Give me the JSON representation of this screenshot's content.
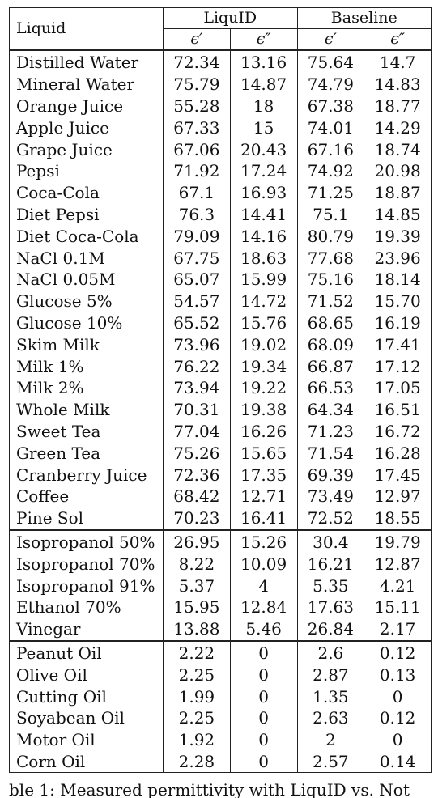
{
  "table": {
    "header": {
      "liquid": "Liquid",
      "group1": "LiquID",
      "group2": "Baseline",
      "eps_real": "ϵ′",
      "eps_imag": "ϵ″"
    },
    "sections": [
      {
        "rows": [
          {
            "name": "Distilled Water",
            "l1": "72.34",
            "l2": "13.16",
            "b1": "75.64",
            "b2": "14.7"
          },
          {
            "name": "Mineral Water",
            "l1": "75.79",
            "l2": "14.87",
            "b1": "74.79",
            "b2": "14.83"
          },
          {
            "name": "Orange Juice",
            "l1": "55.28",
            "l2": "18",
            "b1": "67.38",
            "b2": "18.77"
          },
          {
            "name": "Apple Juice",
            "l1": "67.33",
            "l2": "15",
            "b1": "74.01",
            "b2": "14.29"
          },
          {
            "name": "Grape Juice",
            "l1": "67.06",
            "l2": "20.43",
            "b1": "67.16",
            "b2": "18.74"
          },
          {
            "name": "Pepsi",
            "l1": "71.92",
            "l2": "17.24",
            "b1": "74.92",
            "b2": "20.98"
          },
          {
            "name": "Coca-Cola",
            "l1": "67.1",
            "l2": "16.93",
            "b1": "71.25",
            "b2": "18.87"
          },
          {
            "name": "Diet Pepsi",
            "l1": "76.3",
            "l2": "14.41",
            "b1": "75.1",
            "b2": "14.85"
          },
          {
            "name": "Diet Coca-Cola",
            "l1": "79.09",
            "l2": "14.16",
            "b1": "80.79",
            "b2": "19.39"
          },
          {
            "name": "NaCl 0.1M",
            "l1": "67.75",
            "l2": "18.63",
            "b1": "77.68",
            "b2": "23.96"
          },
          {
            "name": "NaCl 0.05M",
            "l1": "65.07",
            "l2": "15.99",
            "b1": "75.16",
            "b2": "18.14"
          },
          {
            "name": "Glucose 5%",
            "l1": "54.57",
            "l2": "14.72",
            "b1": "71.52",
            "b2": "15.70"
          },
          {
            "name": "Glucose 10%",
            "l1": "65.52",
            "l2": "15.76",
            "b1": "68.65",
            "b2": "16.19"
          },
          {
            "name": "Skim Milk",
            "l1": "73.96",
            "l2": "19.02",
            "b1": "68.09",
            "b2": "17.41"
          },
          {
            "name": "Milk 1%",
            "l1": "76.22",
            "l2": "19.34",
            "b1": "66.87",
            "b2": "17.12"
          },
          {
            "name": "Milk 2%",
            "l1": "73.94",
            "l2": "19.22",
            "b1": "66.53",
            "b2": "17.05"
          },
          {
            "name": "Whole Milk",
            "l1": "70.31",
            "l2": "19.38",
            "b1": "64.34",
            "b2": "16.51"
          },
          {
            "name": "Sweet Tea",
            "l1": "77.04",
            "l2": "16.26",
            "b1": "71.23",
            "b2": "16.72"
          },
          {
            "name": "Green Tea",
            "l1": "75.26",
            "l2": "15.65",
            "b1": "71.54",
            "b2": "16.28"
          },
          {
            "name": "Cranberry Juice",
            "l1": "72.36",
            "l2": "17.35",
            "b1": "69.39",
            "b2": "17.45"
          },
          {
            "name": "Coffee",
            "l1": "68.42",
            "l2": "12.71",
            "b1": "73.49",
            "b2": "12.97"
          },
          {
            "name": "Pine Sol",
            "l1": "70.23",
            "l2": "16.41",
            "b1": "72.52",
            "b2": "18.55"
          }
        ]
      },
      {
        "rows": [
          {
            "name": "Isopropanol 50%",
            "l1": "26.95",
            "l2": "15.26",
            "b1": "30.4",
            "b2": "19.79"
          },
          {
            "name": "Isopropanol 70%",
            "l1": "8.22",
            "l2": "10.09",
            "b1": "16.21",
            "b2": "12.87"
          },
          {
            "name": "Isopropanol 91%",
            "l1": "5.37",
            "l2": "4",
            "b1": "5.35",
            "b2": "4.21"
          },
          {
            "name": "Ethanol 70%",
            "l1": "15.95",
            "l2": "12.84",
            "b1": "17.63",
            "b2": "15.11"
          },
          {
            "name": "Vinegar",
            "l1": "13.88",
            "l2": "5.46",
            "b1": "26.84",
            "b2": "2.17"
          }
        ]
      },
      {
        "rows": [
          {
            "name": "Peanut Oil",
            "l1": "2.22",
            "l2": "0",
            "b1": "2.6",
            "b2": "0.12"
          },
          {
            "name": "Olive Oil",
            "l1": "2.25",
            "l2": "0",
            "b1": "2.87",
            "b2": "0.13"
          },
          {
            "name": "Cutting Oil",
            "l1": "1.99",
            "l2": "0",
            "b1": "1.35",
            "b2": "0"
          },
          {
            "name": "Soyabean Oil",
            "l1": "2.25",
            "l2": "0",
            "b1": "2.63",
            "b2": "0.12"
          },
          {
            "name": "Motor Oil",
            "l1": "1.92",
            "l2": "0",
            "b1": "2",
            "b2": "0"
          },
          {
            "name": "Corn Oil",
            "l1": "2.28",
            "l2": "0",
            "b1": "2.57",
            "b2": "0.14"
          }
        ]
      }
    ]
  },
  "caption": "ble 1: Measured permittivity with LiquID vs. Not"
}
